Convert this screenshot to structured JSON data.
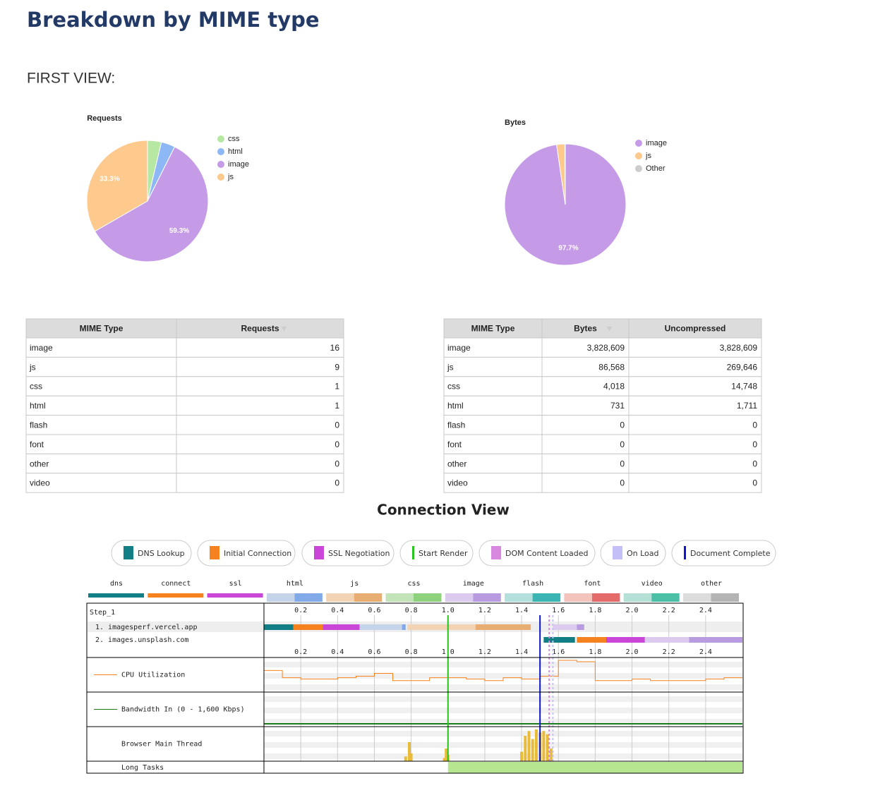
{
  "header": {
    "title": "Breakdown by MIME type",
    "view": "FIRST VIEW:"
  },
  "chart_data": [
    {
      "type": "pie",
      "title": "Requests",
      "categories": [
        "css",
        "html",
        "image",
        "js"
      ],
      "values": [
        3.7,
        3.7,
        59.3,
        33.3
      ],
      "value_labels": [
        null,
        null,
        "59.3%",
        "33.3%"
      ],
      "colors": [
        "#b6e8a4",
        "#8db8f5",
        "#c59be8",
        "#fdc98c"
      ]
    },
    {
      "type": "pie",
      "title": "Bytes",
      "categories": [
        "image",
        "js",
        "Other"
      ],
      "values": [
        97.7,
        2.2,
        0.1
      ],
      "value_labels": [
        "97.7%",
        null,
        null
      ],
      "colors": [
        "#c59be8",
        "#fdc98c",
        "#cccccc"
      ]
    }
  ],
  "tables": [
    {
      "columns": [
        "MIME Type",
        "Requests"
      ],
      "rows": [
        [
          "image",
          "16"
        ],
        [
          "js",
          "9"
        ],
        [
          "css",
          "1"
        ],
        [
          "html",
          "1"
        ],
        [
          "flash",
          "0"
        ],
        [
          "font",
          "0"
        ],
        [
          "other",
          "0"
        ],
        [
          "video",
          "0"
        ]
      ]
    },
    {
      "columns": [
        "MIME Type",
        "Bytes",
        "Uncompressed"
      ],
      "rows": [
        [
          "image",
          "3,828,609",
          "3,828,609"
        ],
        [
          "js",
          "86,568",
          "269,646"
        ],
        [
          "css",
          "4,018",
          "14,748"
        ],
        [
          "html",
          "731",
          "1,711"
        ],
        [
          "flash",
          "0",
          "0"
        ],
        [
          "font",
          "0",
          "0"
        ],
        [
          "other",
          "0",
          "0"
        ],
        [
          "video",
          "0",
          "0"
        ]
      ]
    }
  ],
  "connection_view": {
    "title": "Connection View",
    "legend": [
      {
        "label": "DNS Lookup",
        "color": "#127f87",
        "swatch": "box"
      },
      {
        "label": "Initial Connection",
        "color": "#f6821f",
        "swatch": "box"
      },
      {
        "label": "SSL Negotiation",
        "color": "#c946d6",
        "swatch": "box"
      },
      {
        "label": "Start Render",
        "color": "#28c31c",
        "swatch": "line",
        "time": 1.0
      },
      {
        "label": "DOM Content Loaded",
        "color": "#d888df",
        "swatch": "box",
        "time": 1.55
      },
      {
        "label": "On Load",
        "color": "#c4c0f7",
        "swatch": "box",
        "time": 1.57
      },
      {
        "label": "Document Complete",
        "color": "#0a18d6",
        "swatch": "line",
        "time": 1.5
      }
    ],
    "type_key": [
      {
        "label": "dns",
        "colors": [
          "#127f87"
        ]
      },
      {
        "label": "connect",
        "colors": [
          "#f6821f"
        ]
      },
      {
        "label": "ssl",
        "colors": [
          "#c946d6"
        ]
      },
      {
        "label": "html",
        "colors": [
          "#c6d4ea",
          "#82a9e8"
        ]
      },
      {
        "label": "js",
        "colors": [
          "#f2d3b3",
          "#e7ad73"
        ]
      },
      {
        "label": "css",
        "colors": [
          "#c2e4b8",
          "#8ed27e"
        ]
      },
      {
        "label": "image",
        "colors": [
          "#dccbee",
          "#b89be0"
        ]
      },
      {
        "label": "flash",
        "colors": [
          "#b3e0dd",
          "#3bb5b3"
        ]
      },
      {
        "label": "font",
        "colors": [
          "#f4c3bc",
          "#e56a6a"
        ]
      },
      {
        "label": "video",
        "colors": [
          "#b4e0d6",
          "#4cc0a6"
        ]
      },
      {
        "label": "other",
        "colors": [
          "#dcdcdc",
          "#b4b4b4"
        ]
      }
    ],
    "xlim": [
      0,
      2.6
    ],
    "xticks": [
      0.2,
      0.4,
      0.6,
      0.8,
      {
        "value": 1,
        "label": "1.0"
      },
      1.2,
      1.4,
      1.6,
      1.8,
      {
        "value": 2,
        "label": "2.0"
      },
      2.2,
      2.4
    ],
    "step": "Step_1",
    "requests": [
      {
        "label": "1. imagesperf.vercel.app",
        "segments": [
          {
            "type": "dns",
            "start": 0,
            "end": 0.16
          },
          {
            "type": "connect",
            "start": 0.16,
            "end": 0.32
          },
          {
            "type": "ssl",
            "start": 0.32,
            "end": 0.52
          },
          {
            "type": "html",
            "start": 0.52,
            "download": 0.75,
            "end": 0.77
          },
          {
            "type": "js",
            "start": 0.78,
            "download": 1.15,
            "end": 1.45
          },
          {
            "type": "image",
            "start": 1.57,
            "download": 1.7,
            "end": 1.74
          }
        ]
      },
      {
        "label": "2. images.unsplash.com",
        "segments": [
          {
            "type": "dns",
            "start": 1.52,
            "end": 1.69
          },
          {
            "type": "connect",
            "start": 1.7,
            "end": 1.86
          },
          {
            "type": "ssl",
            "start": 1.86,
            "end": 2.07
          },
          {
            "type": "image",
            "start": 2.07,
            "download": 2.31,
            "end": 2.6
          }
        ]
      }
    ],
    "cpu": {
      "label": "CPU Utilization",
      "color": "#f6821f",
      "x": [
        0,
        0.1,
        0.2,
        0.3,
        0.4,
        0.5,
        0.6,
        0.7,
        0.8,
        0.9,
        1,
        1.1,
        1.2,
        1.3,
        1.4,
        1.5,
        1.6,
        1.7,
        1.8,
        1.9,
        2,
        2.1,
        2.2,
        2.3,
        2.4,
        2.5,
        2.6
      ],
      "values": [
        65,
        40,
        35,
        35,
        40,
        45,
        55,
        30,
        30,
        40,
        40,
        35,
        30,
        40,
        35,
        45,
        100,
        95,
        30,
        30,
        35,
        30,
        30,
        30,
        35,
        40,
        40
      ]
    },
    "bandwidth": {
      "label": "Bandwidth In (0 - 1,600 Kbps)",
      "color": "#1a7a1a",
      "x": [
        0,
        2.6
      ],
      "values": [
        0,
        0
      ]
    },
    "main_thread": {
      "label": "Browser Main Thread",
      "color": "#e9bb3a",
      "x": [
        0.77,
        0.79,
        0.8,
        0.98,
        0.99,
        1.0,
        1.4,
        1.42,
        1.44,
        1.46,
        1.48,
        1.5,
        1.52,
        1.54,
        1.56
      ],
      "values": [
        15,
        60,
        25,
        10,
        40,
        20,
        30,
        80,
        95,
        70,
        100,
        90,
        95,
        85,
        40
      ]
    },
    "long_tasks": {
      "label": "Long Tasks",
      "color": "#b6e68f",
      "start": 1.0,
      "end": 2.6
    }
  }
}
